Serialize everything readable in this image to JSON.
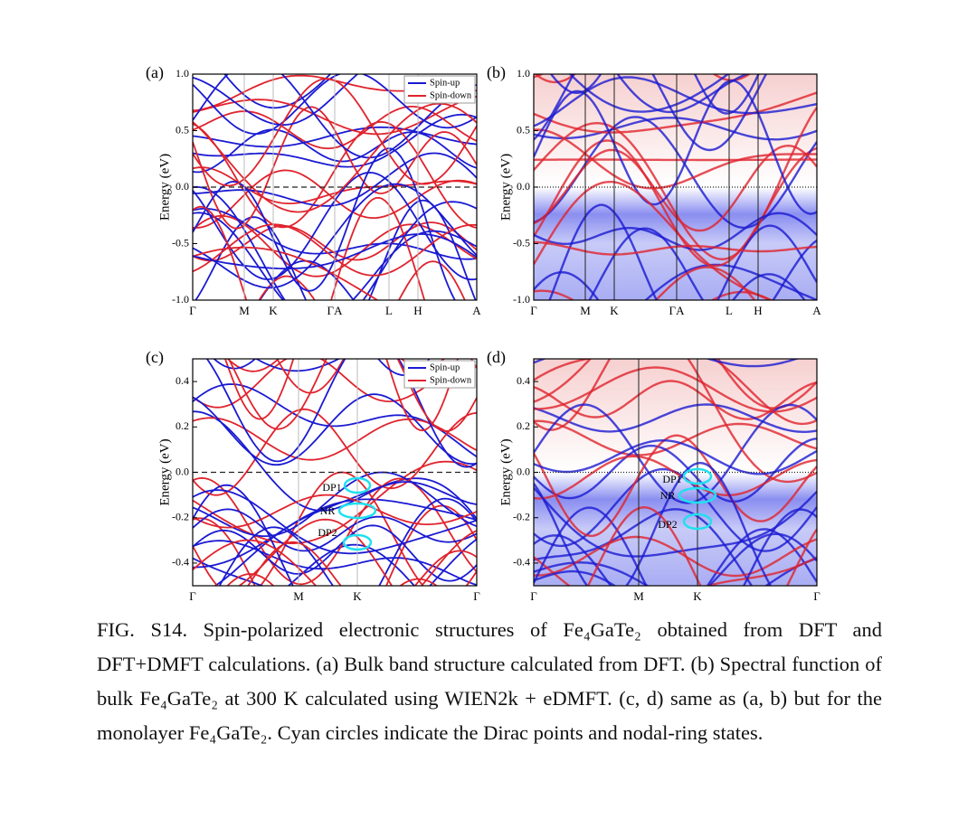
{
  "figure": {
    "series": [
      {
        "name": "Spin-up",
        "color": "#1a1ad2"
      },
      {
        "name": "Spin-down",
        "color": "#e0232d"
      }
    ],
    "panels": [
      {
        "label": "(a)",
        "ylabel": "Energy (eV)",
        "ylim": [
          -1,
          1
        ],
        "yticks": [
          {
            "value": 1,
            "label": "1.0"
          },
          {
            "value": 0.5,
            "label": "0.5"
          },
          {
            "value": 0,
            "label": "0.0"
          },
          {
            "value": -0.5,
            "label": "-0.5"
          },
          {
            "value": -1,
            "label": "-1.0"
          }
        ],
        "kpoints": [
          "Γ",
          "M",
          "K",
          "ΓA",
          "L",
          "H",
          "A"
        ],
        "legend": true,
        "spectral": false
      },
      {
        "label": "(b)",
        "ylabel": "Energy (eV)",
        "ylim": [
          -1,
          1
        ],
        "yticks": [
          {
            "value": 1,
            "label": "1.0"
          },
          {
            "value": 0.5,
            "label": "0.5"
          },
          {
            "value": 0,
            "label": "0.0"
          },
          {
            "value": -0.5,
            "label": "-0.5"
          },
          {
            "value": -1,
            "label": "-1.0"
          }
        ],
        "kpoints": [
          "Γ",
          "M",
          "K",
          "ΓA",
          "L",
          "H",
          "A"
        ],
        "legend": false,
        "spectral": true
      },
      {
        "label": "(c)",
        "ylabel": "Energy (eV)",
        "ylim": [
          -0.5,
          0.5
        ],
        "yticks": [
          {
            "value": 0.4,
            "label": "0.4"
          },
          {
            "value": 0.2,
            "label": "0.2"
          },
          {
            "value": 0,
            "label": "0.0"
          },
          {
            "value": -0.2,
            "label": "-0.2"
          },
          {
            "value": -0.4,
            "label": "-0.4"
          }
        ],
        "kpoints": [
          "Γ",
          "M",
          "K",
          "Γ"
        ],
        "legend": true,
        "spectral": false,
        "annotations": [
          "DP1",
          "NR",
          "DP2"
        ]
      },
      {
        "label": "(d)",
        "ylabel": "Energy (eV)",
        "ylim": [
          -0.5,
          0.5
        ],
        "yticks": [
          {
            "value": 0.4,
            "label": "0.4"
          },
          {
            "value": 0.2,
            "label": "0.2"
          },
          {
            "value": 0,
            "label": "0.0"
          },
          {
            "value": -0.2,
            "label": "-0.2"
          },
          {
            "value": -0.4,
            "label": "-0.4"
          }
        ],
        "kpoints": [
          "Γ",
          "M",
          "K",
          "Γ"
        ],
        "legend": false,
        "spectral": true,
        "annotations": [
          "DP1",
          "NR",
          "DP2"
        ]
      }
    ],
    "caption": "FIG. S14. Spin-polarized electronic structures of Fe₄GaTe₂ obtained from DFT and DFT+DMFT calculations. (a) Bulk band structure calculated from DFT. (b) Spectral function of bulk Fe₄GaTe₂ at 300 K calculated using WIEN2k + eDMFT. (c, d) same as (a, b) but for the monolayer Fe₄GaTe₂. Cyan circles indicate the Dirac points and nodal-ring states."
  }
}
